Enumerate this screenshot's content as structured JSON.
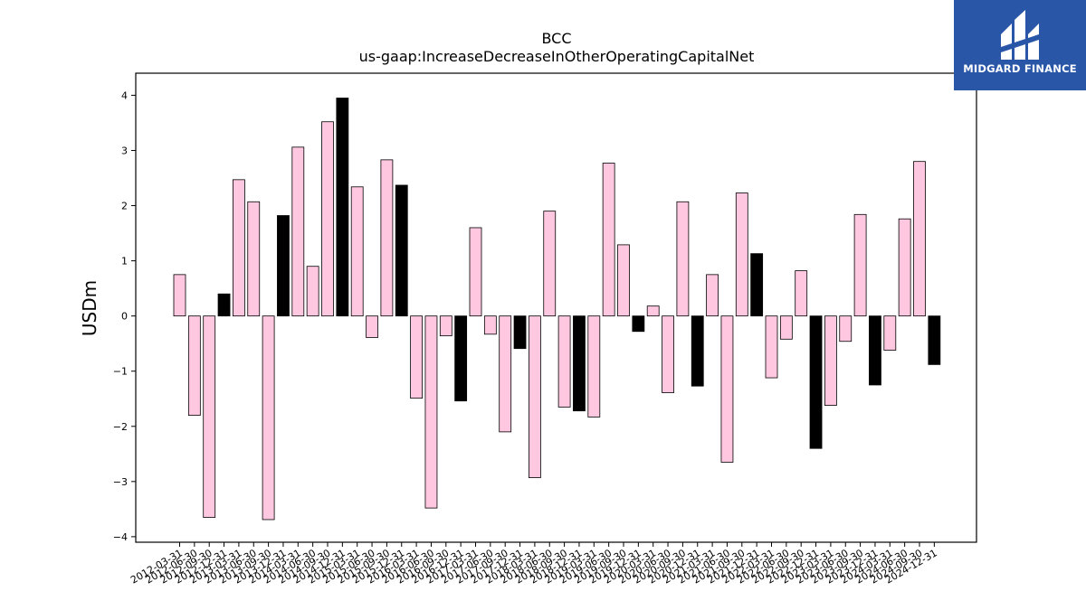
{
  "chart_data": {
    "type": "bar",
    "title": "BCC",
    "subtitle": "us-gaap:IncreaseDecreaseInOtherOperatingCapitalNet",
    "xlabel": "",
    "ylabel": "USDm",
    "ylim": [
      -4.1,
      4.4
    ],
    "yticks": [
      -4,
      -3,
      -2,
      -1,
      0,
      1,
      2,
      3,
      4
    ],
    "grid": false,
    "colors": {
      "default": "#ffc8e0",
      "q4": "#000000",
      "edge": "#000000"
    },
    "categories": [
      "2012-03-31",
      "2012-06-30",
      "2012-09-30",
      "2012-12-31",
      "2013-03-31",
      "2013-06-30",
      "2013-09-30",
      "2013-12-31",
      "2014-03-31",
      "2014-06-30",
      "2014-09-30",
      "2014-12-31",
      "2015-03-31",
      "2015-06-30",
      "2015-09-30",
      "2015-12-31",
      "2016-03-31",
      "2016-06-30",
      "2016-09-30",
      "2016-12-31",
      "2017-03-31",
      "2017-06-30",
      "2017-09-30",
      "2017-12-31",
      "2018-03-31",
      "2018-06-30",
      "2018-09-30",
      "2018-12-31",
      "2019-03-31",
      "2019-06-30",
      "2019-09-30",
      "2019-12-31",
      "2020-03-31",
      "2020-06-30",
      "2020-09-30",
      "2020-12-31",
      "2021-03-31",
      "2021-06-30",
      "2021-09-30",
      "2021-12-31",
      "2022-03-31",
      "2022-06-30",
      "2022-09-30",
      "2022-12-31",
      "2023-03-31",
      "2023-06-30",
      "2023-09-30",
      "2023-12-31",
      "2024-03-31",
      "2024-06-30",
      "2024-09-30",
      "2024-12-31"
    ],
    "values": [
      0.75,
      -1.8,
      -3.65,
      0.4,
      2.47,
      2.07,
      -3.69,
      1.82,
      3.06,
      0.9,
      3.52,
      3.95,
      2.34,
      -0.39,
      2.83,
      2.37,
      -1.49,
      -3.48,
      -0.36,
      -1.54,
      1.6,
      -0.33,
      -2.1,
      -0.59,
      -2.93,
      1.9,
      -1.65,
      -1.72,
      -1.83,
      2.77,
      1.29,
      -0.28,
      0.18,
      -1.39,
      2.07,
      -1.27,
      0.75,
      -2.65,
      2.23,
      1.13,
      -1.12,
      -0.42,
      0.82,
      -2.4,
      -1.62,
      -0.46,
      1.84,
      -1.25,
      -0.62,
      1.76,
      2.8,
      -0.88
    ]
  },
  "logo": {
    "name": "MIDGARD FINANCE",
    "icon": "midgard-logo-icon"
  }
}
